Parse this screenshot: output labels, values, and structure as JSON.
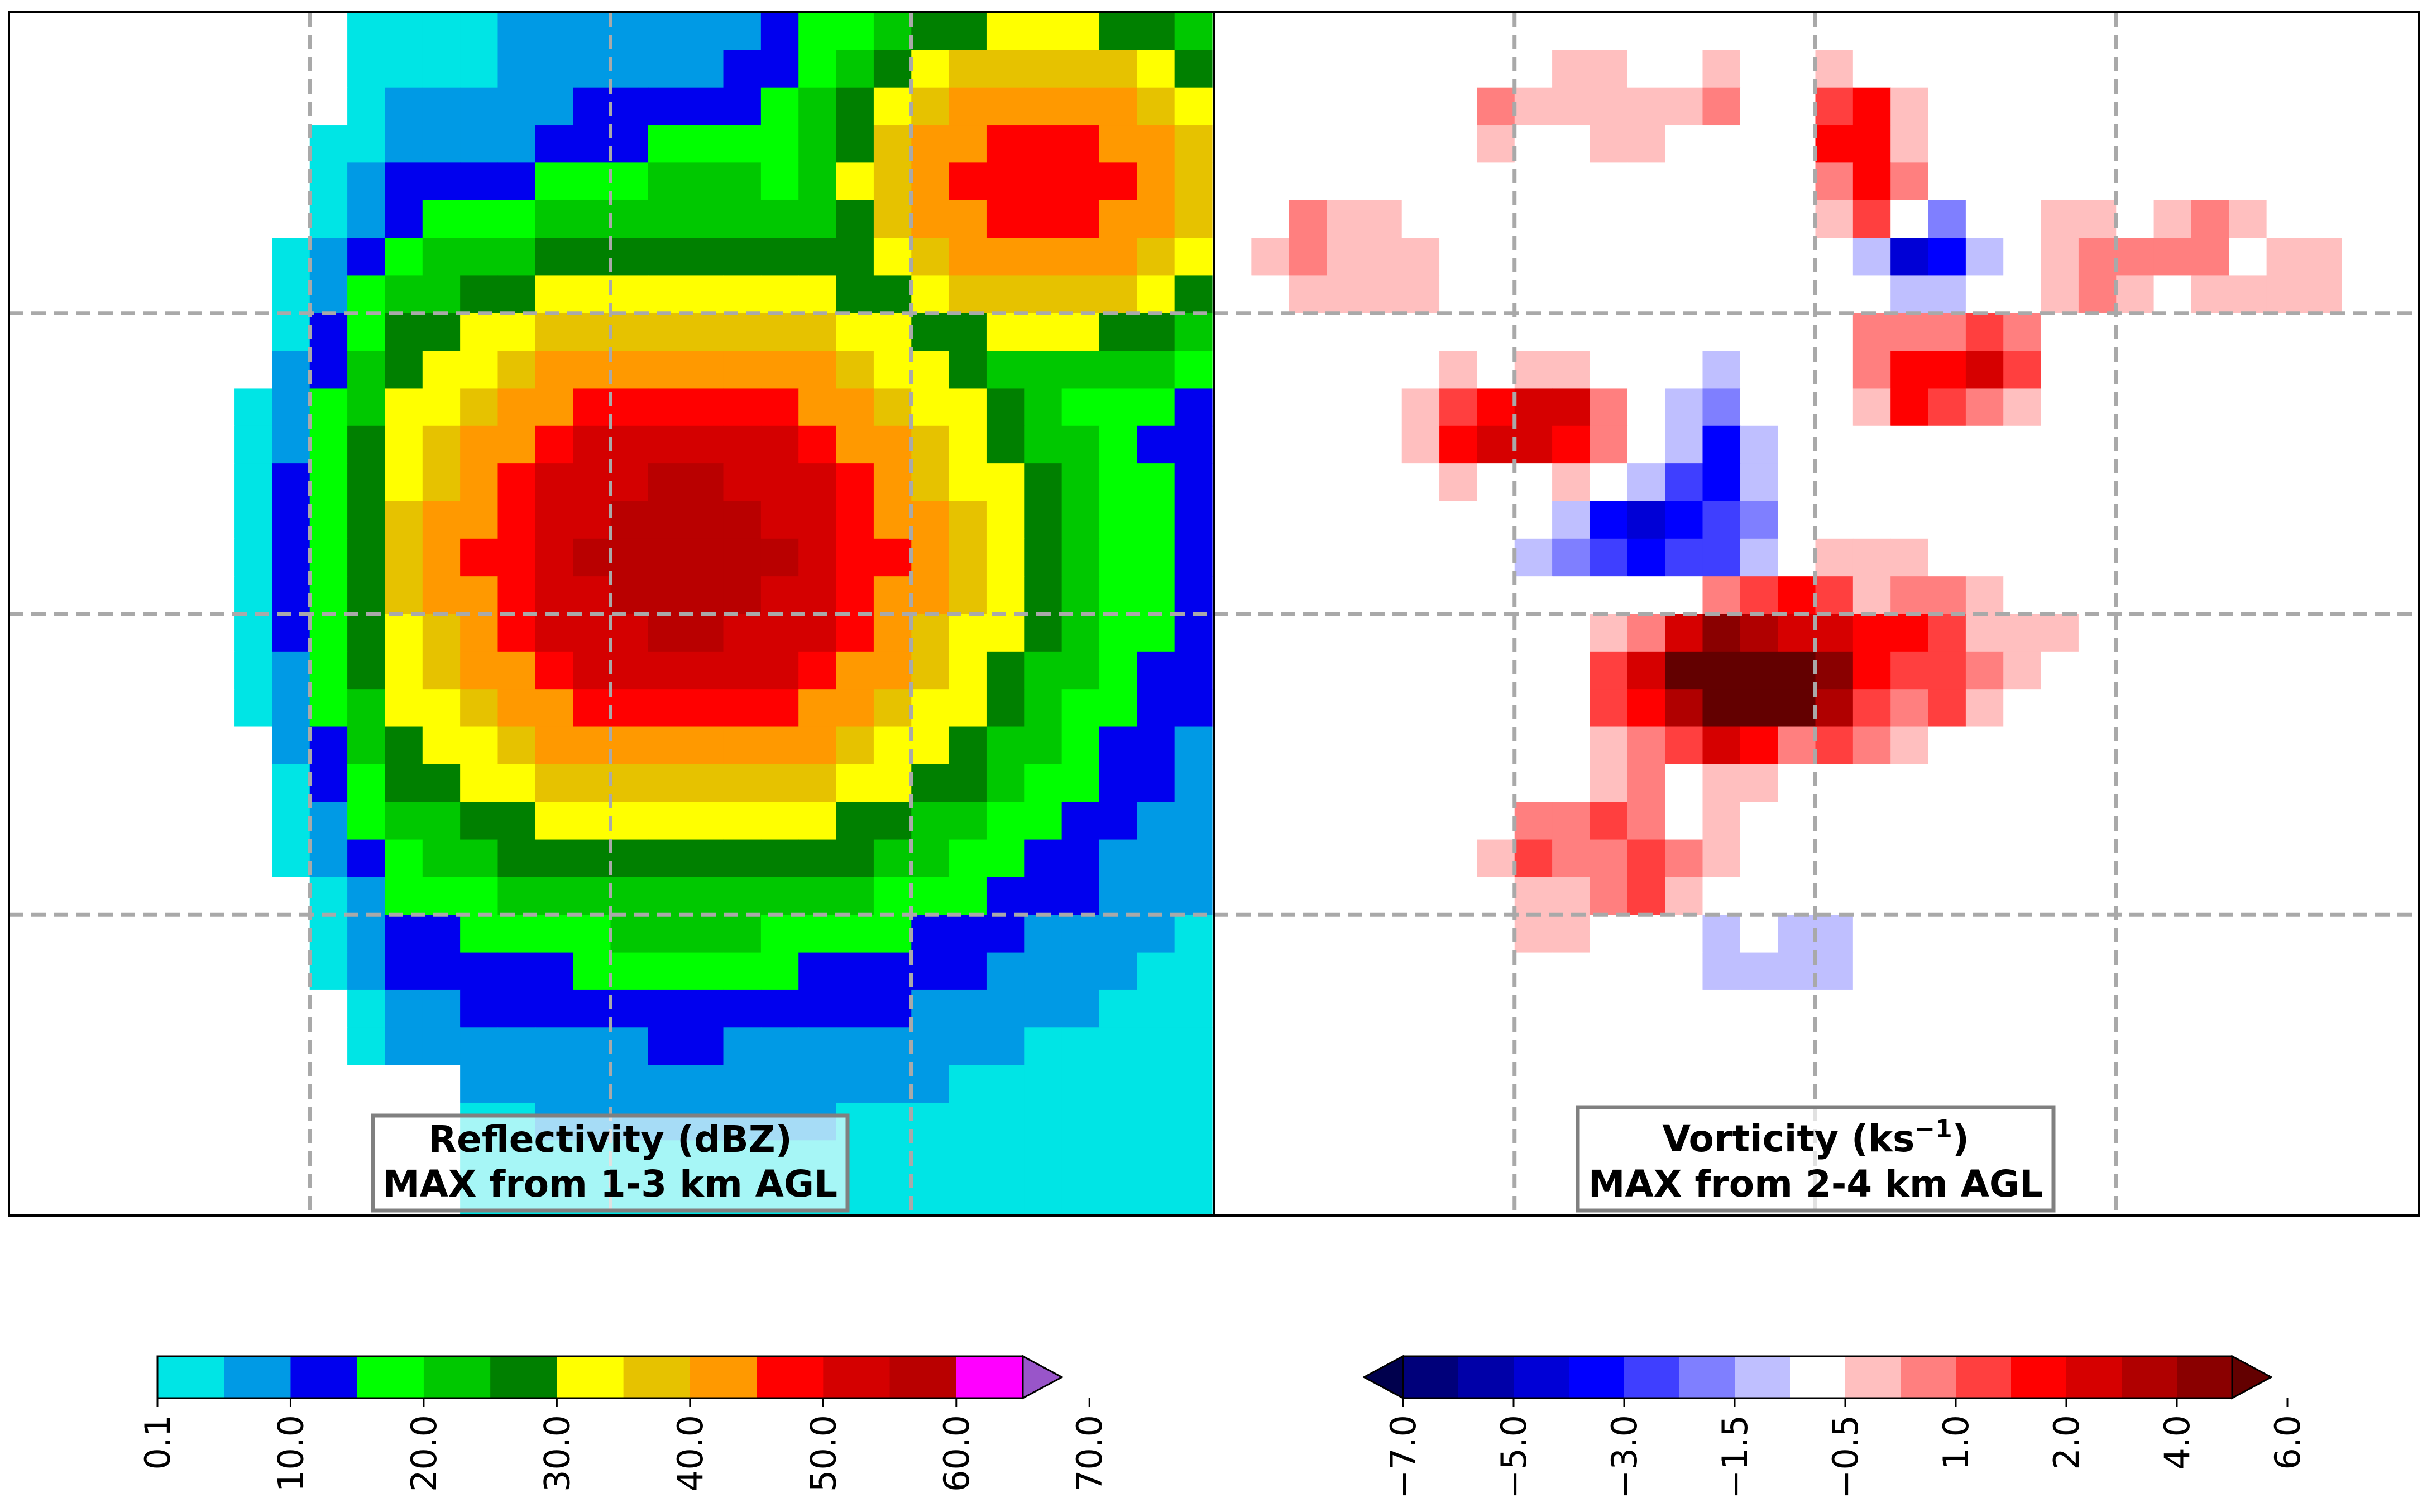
{
  "chart_data": [
    {
      "type": "heatmap",
      "title": "",
      "label_box": {
        "line1": "Reflectivity (dBZ)",
        "line2": "MAX from 1-3 km AGL"
      },
      "grid": true,
      "rows": 32,
      "cols": 32,
      "cell_colors": [
        "kkkkkkkkkkkkkkkkkkkkkkkkkkkkkkkk",
        "kkk jlkkkkkkk ijjkkkkkkkkkkkkkkk",
        "kkkkklkkk kkl ijjklk kkkkkkkkkkk",
        "kkkkklkkkkkkk ijkkkkkkkkkkkkkkkk",
        "kkkkkkkkkkkkkkkkkkkkkkkkkkkkkkkk",
        "kkkkkkkk kkkkkkkkkkk kkkkkkkkkkk",
        "kkkkkk kkkkkkkkkkkkkkkkkkkkkkkkk",
        "kkkkkkkkkkkkkkkkkkkkkkkkkkkkkkkk",
        "kkkkkkkkkkkkkkkkkkkkkkkkkkkkkkkk",
        "kkkkkkkkkkkkkkkkkkkkkkkkkkkkkkkk",
        "kkkkkkkkkkkkkkkkkkkkkkkkkkkkkkkk",
        "kkkkkkkkkkkkkkkkkkkkkkkkkkkkkkkk",
        "kkkkkkkkkkkkkkkkkkkkkkkkkkkkkkkk",
        "kkkkkkkkkkkkkkkkkkkkkkkkkkkkkkkk",
        "kkkkkkkkkkkkkkkkkkkkkkkkkkkkkkkk",
        "kkkkkkkkkkkkkkkkkkkkkkkkkkkkkkkk",
        "kkkkkkkkkkkkkkkkkkkkkkkkkkkkkkkk",
        "kkkkkkkkkkkkkkkkkkkkkkkkkkkkkkkk",
        "kkkkkkkkkkkkkkkkkkkkkkkkkkkkkkkk",
        "kkkkkkkkkkkkkkkkkkkkkkkkkkkkkkkk",
        "kkkkkkkkkkkkkkkkkkkkkkkkkkkkkkkk",
        "kkkkkkkkkkkkkkkkkkkkkkkkkkkkkkkk",
        "kkkkkkkkkkkkkkkkkkkkkkkkkkkkkkkk",
        "kkkkkkkkkkkkkkkkkkkkkkkkkkkkkkkk",
        "kkkkkkkkkkkkkkkkkkkkkkkkkkkkkkkk",
        "kkkkkkkkkkkkkkkkkkkkkkkkkkkkkkkk",
        "kkkkkkkkkkkkkkkkkkkkkkkkkkkkkkkk",
        "kkkkkkkkkkkkkkkkkkkkkkkkkkkkkkkk",
        "kkkkkkkkkkkkkkkkkkkkkkkkkkkkkkkk",
        "kkkkkkkkkkkkkkkkkkkkkkkkkkkkkkkk",
        "kkkkkkkkkkkkkkkkkkkkkkkkkkkkkkkk",
        "kkkkkkkkkkkkkkkkkkkkkkkkkkkkkkkk"
      ],
      "cell_colors_note_ignore": "",
      "colorbar": {
        "ticks": [
          "0.1",
          "10.0",
          "20.0",
          "30.0",
          "40.0",
          "50.0",
          "60.0",
          "70.0"
        ],
        "colors": [
          "#00e5e5",
          "#009ae5",
          "#0000ee",
          "#00ff00",
          "#00c800",
          "#008000",
          "#ffff00",
          "#e6c200",
          "#ff9900",
          "#ff0000",
          "#d40000",
          "#b90000",
          "#ff00ff",
          "#9955c9"
        ],
        "extend": "max"
      }
    },
    {
      "type": "heatmap",
      "title": "",
      "label_box": {
        "line1": "Vorticity (ks",
        "line1_sup": "−1",
        "line1_end": ")",
        "line2": "MAX from 2-4 km AGL"
      },
      "grid": true,
      "rows": 32,
      "cols": 32,
      "colorbar": {
        "ticks": [
          "−7.0",
          "−5.0",
          "−3.0",
          "−1.5",
          "−0.5",
          "1.0",
          "2.0",
          "4.0",
          "6.0"
        ],
        "colors": [
          "#00004d",
          "#00007a",
          "#0000a8",
          "#0000d6",
          "#0000ff",
          "#3f3fff",
          "#7f7fff",
          "#bfbfff",
          "#ffffff",
          "#ffbfbf",
          "#ff7f7f",
          "#ff3f3f",
          "#ff0000",
          "#d60000",
          "#b00000",
          "#8a0000",
          "#630000"
        ],
        "extend": "both"
      }
    }
  ]
}
